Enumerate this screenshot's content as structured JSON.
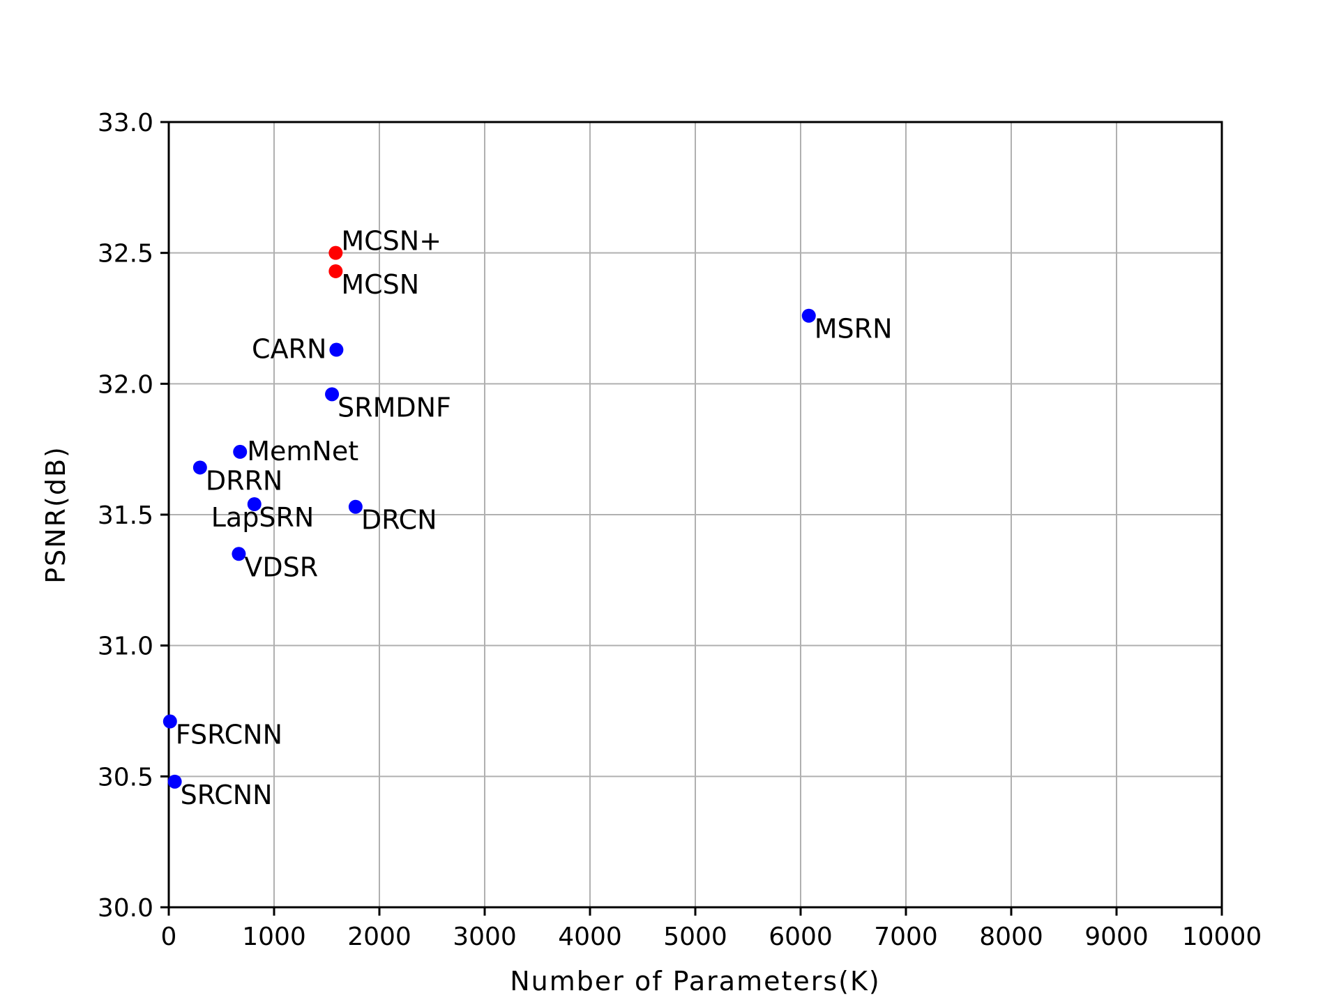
{
  "chart_data": {
    "type": "scatter",
    "xlabel": "Number of Parameters(K)",
    "ylabel": "PSNR(dB)",
    "xlim": [
      0,
      10000
    ],
    "ylim": [
      30.0,
      33.0
    ],
    "x_ticks": [
      "0",
      "1000",
      "2000",
      "3000",
      "4000",
      "5000",
      "6000",
      "7000",
      "8000",
      "9000",
      "10000"
    ],
    "y_ticks": [
      "30.0",
      "30.5",
      "31.0",
      "31.5",
      "32.0",
      "32.5",
      "33.0"
    ],
    "grid": true,
    "colors": {
      "ours": "#ff0000",
      "others": "#0000ff"
    },
    "points": [
      {
        "label": "MCSN+",
        "x": 1585,
        "y": 32.5,
        "color": "#ff0000",
        "label_pos": "upper-right"
      },
      {
        "label": "MCSN",
        "x": 1585,
        "y": 32.43,
        "color": "#ff0000",
        "label_pos": "lower-right"
      },
      {
        "label": "MSRN",
        "x": 6078,
        "y": 32.26,
        "color": "#0000ff",
        "label_pos": "lower-right"
      },
      {
        "label": "CARN",
        "x": 1592,
        "y": 32.13,
        "color": "#0000ff",
        "label_pos": "left"
      },
      {
        "label": "SRMDNF",
        "x": 1550,
        "y": 31.96,
        "color": "#0000ff",
        "label_pos": "lower-right"
      },
      {
        "label": "MemNet",
        "x": 677,
        "y": 31.74,
        "color": "#0000ff",
        "label_pos": "right"
      },
      {
        "label": "DRRN",
        "x": 297,
        "y": 31.68,
        "color": "#0000ff",
        "label_pos": "lower-right"
      },
      {
        "label": "LapSRN",
        "x": 813,
        "y": 31.54,
        "color": "#0000ff",
        "label_pos": "lower-left"
      },
      {
        "label": "DRCN",
        "x": 1774,
        "y": 31.53,
        "color": "#0000ff",
        "label_pos": "lower-right"
      },
      {
        "label": "VDSR",
        "x": 665,
        "y": 31.35,
        "color": "#0000ff",
        "label_pos": "lower-right"
      },
      {
        "label": "FSRCNN",
        "x": 12,
        "y": 30.71,
        "color": "#0000ff",
        "label_pos": "lower-right"
      },
      {
        "label": "SRCNN",
        "x": 57,
        "y": 30.48,
        "color": "#0000ff",
        "label_pos": "lower-right"
      }
    ]
  }
}
